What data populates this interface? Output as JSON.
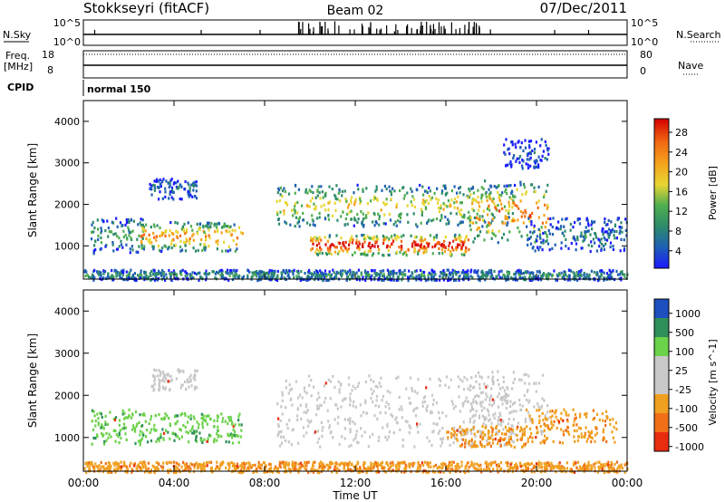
{
  "header": {
    "title": "Stokkseyri (fitACF)",
    "beam": "Beam 02",
    "date": "07/Dec/2011"
  },
  "strips": {
    "nsky_label": "N.Sky",
    "nsearch_label": "N.Search",
    "freq_label": "Freq.",
    "freq_unit": "[MHz]",
    "nave_label": "Nave",
    "cpid_label": "CPID",
    "cpid_value": "normal 150",
    "count_tick_hi": "10^5",
    "count_tick_lo": "10^0",
    "freq_ticks": [
      "18",
      "8"
    ],
    "nave_ticks": [
      "80",
      "0"
    ]
  },
  "chart_data": [
    {
      "type": "heatmap",
      "name": "power",
      "xlabel": "",
      "ylabel": "Slant Range [km]",
      "xlim": [
        0,
        24
      ],
      "ylim": [
        200,
        4500
      ],
      "yticks": [
        "1000",
        "2000",
        "3000",
        "4000"
      ],
      "colorbar": {
        "label": "Power [dB]",
        "ticks": [
          "28",
          "24",
          "20",
          "16",
          "12",
          "8",
          "4"
        ],
        "colors": [
          "#1a1aff",
          "#1e5fb4",
          "#2e8b6a",
          "#4fae4f",
          "#e8d633",
          "#f5a21c",
          "#f26b12",
          "#e52a12",
          "#d40000"
        ]
      },
      "bands": [
        {
          "x0": 0.3,
          "x1": 2.6,
          "y0": 850,
          "y1": 1700,
          "level": 0.35
        },
        {
          "x0": 2.5,
          "x1": 7.0,
          "y0": 900,
          "y1": 1600,
          "level": 0.7
        },
        {
          "x0": 2.9,
          "x1": 5.0,
          "y0": 2150,
          "y1": 2650,
          "level": 0.2
        },
        {
          "x0": 8.5,
          "x1": 19.0,
          "y0": 1500,
          "y1": 2500,
          "level": 0.55
        },
        {
          "x0": 10.0,
          "x1": 17.0,
          "y0": 800,
          "y1": 1300,
          "level": 0.95
        },
        {
          "x0": 17.0,
          "x1": 20.5,
          "y0": 1100,
          "y1": 2600,
          "level": 0.75
        },
        {
          "x0": 18.5,
          "x1": 20.5,
          "y0": 2900,
          "y1": 3600,
          "level": 0.15
        },
        {
          "x0": 19.5,
          "x1": 24.0,
          "y0": 900,
          "y1": 1700,
          "level": 0.25
        },
        {
          "x0": 0.0,
          "x1": 24.0,
          "y0": 200,
          "y1": 450,
          "level": 0.3
        }
      ]
    },
    {
      "type": "heatmap",
      "name": "velocity",
      "xlabel": "Time UT",
      "ylabel": "Slant Range [km]",
      "xlim": [
        0,
        24
      ],
      "ylim": [
        200,
        4500
      ],
      "xticks": [
        "00:00",
        "04:00",
        "08:00",
        "12:00",
        "16:00",
        "20:00",
        "00:00"
      ],
      "yticks": [
        "1000",
        "2000",
        "3000",
        "4000"
      ],
      "colorbar": {
        "label": "Velocity [m s^-1]",
        "ticks": [
          "1000",
          "500",
          "100",
          "25",
          "-25",
          "-100",
          "-500",
          "-1000"
        ],
        "colors": [
          "#1e4fbf",
          "#2f8f5a",
          "#6bd24a",
          "#c8c8c8",
          "#c8c8c8",
          "#f0a020",
          "#f07018",
          "#e82c10"
        ]
      },
      "bands": [
        {
          "x0": 0.3,
          "x1": 2.6,
          "y0": 850,
          "y1": 1700,
          "class": "green"
        },
        {
          "x0": 2.5,
          "x1": 7.0,
          "y0": 900,
          "y1": 1600,
          "class": "green"
        },
        {
          "x0": 2.9,
          "x1": 5.0,
          "y0": 2150,
          "y1": 2650,
          "class": "gray"
        },
        {
          "x0": 8.5,
          "x1": 19.0,
          "y0": 800,
          "y1": 2500,
          "class": "gray"
        },
        {
          "x0": 17.0,
          "x1": 20.5,
          "y0": 1100,
          "y1": 2600,
          "class": "gray"
        },
        {
          "x0": 16.0,
          "x1": 19.5,
          "y0": 800,
          "y1": 1300,
          "class": "orange"
        },
        {
          "x0": 19.5,
          "x1": 23.5,
          "y0": 900,
          "y1": 1700,
          "class": "orange"
        },
        {
          "x0": 0.0,
          "x1": 24.0,
          "y0": 200,
          "y1": 450,
          "class": "orange"
        }
      ]
    }
  ]
}
